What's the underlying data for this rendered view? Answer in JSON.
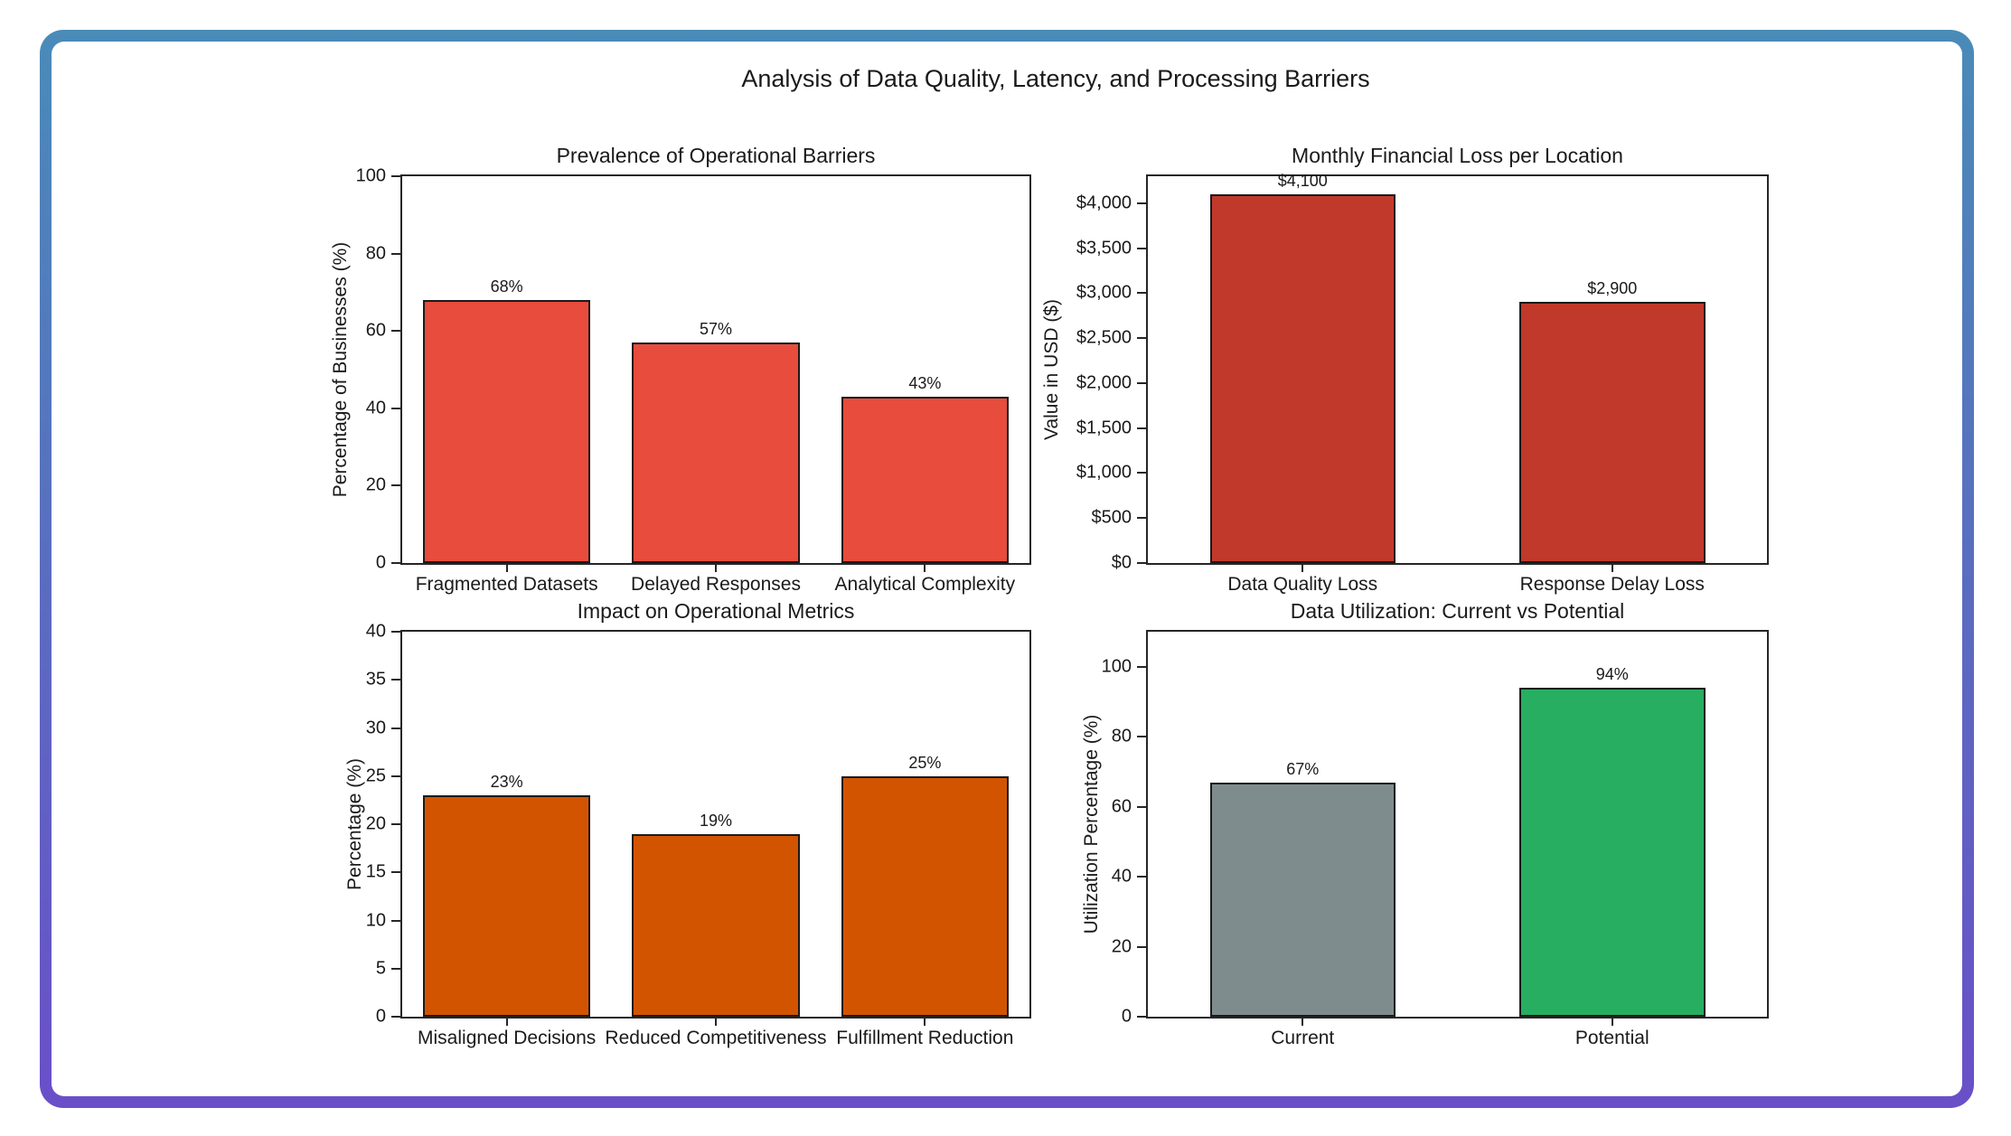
{
  "figure": {
    "title": "Analysis of Data Quality, Latency, and Processing Barriers",
    "background": "#ffffff",
    "border_gradient_top": "#4a8bb8",
    "border_gradient_bottom": "#6a4fc8"
  },
  "chart_data": [
    {
      "id": "prevalence-of-operational-barriers",
      "type": "bar",
      "title": "Prevalence of Operational Barriers",
      "xlabel": "",
      "ylabel": "Percentage of Businesses (%)",
      "categories": [
        "Fragmented Datasets",
        "Delayed Responses",
        "Analytical Complexity"
      ],
      "values": [
        68,
        57,
        43
      ],
      "value_labels": [
        "68%",
        "57%",
        "43%"
      ],
      "bar_color": "#e74c3c",
      "edge_color": "#1a1a1a",
      "ylim": [
        0,
        100
      ],
      "yticks": [
        0,
        20,
        40,
        60,
        80,
        100
      ],
      "ytick_labels": [
        "0",
        "20",
        "40",
        "60",
        "80",
        "100"
      ],
      "bar_width_ratio": 0.8,
      "grid": false,
      "legend": null
    },
    {
      "id": "monthly-financial-loss-per-location",
      "type": "bar",
      "title": "Monthly Financial Loss per Location",
      "xlabel": "",
      "ylabel": "Value in USD ($)",
      "categories": [
        "Data Quality Loss",
        "Response Delay Loss"
      ],
      "values": [
        4100,
        2900
      ],
      "value_labels": [
        "$4,100",
        "$2,900"
      ],
      "bar_color": "#c0392b",
      "edge_color": "#1a1a1a",
      "ylim": [
        0,
        4300
      ],
      "yticks": [
        0,
        500,
        1000,
        1500,
        2000,
        2500,
        3000,
        3500,
        4000
      ],
      "ytick_labels": [
        "$0",
        "$500",
        "$1,000",
        "$1,500",
        "$2,000",
        "$2,500",
        "$3,000",
        "$3,500",
        "$4,000"
      ],
      "bar_width_ratio": 0.6,
      "grid": false,
      "legend": null
    },
    {
      "id": "impact-on-operational-metrics",
      "type": "bar",
      "title": "Impact on Operational Metrics",
      "xlabel": "",
      "ylabel": "Percentage (%)",
      "categories": [
        "Misaligned Decisions",
        "Reduced Competitiveness",
        "Fulfillment Reduction"
      ],
      "values": [
        23,
        19,
        25
      ],
      "value_labels": [
        "23%",
        "19%",
        "25%"
      ],
      "bar_color": "#d35400",
      "edge_color": "#1a1a1a",
      "ylim": [
        0,
        40
      ],
      "yticks": [
        0,
        5,
        10,
        15,
        20,
        25,
        30,
        35,
        40
      ],
      "ytick_labels": [
        "0",
        "5",
        "10",
        "15",
        "20",
        "25",
        "30",
        "35",
        "40"
      ],
      "bar_width_ratio": 0.8,
      "grid": false,
      "legend": null
    },
    {
      "id": "data-utilization-current-vs-potential",
      "type": "bar",
      "title": "Data Utilization: Current vs Potential",
      "xlabel": "",
      "ylabel": "Utilization Percentage (%)",
      "categories": [
        "Current",
        "Potential"
      ],
      "values": [
        67,
        94
      ],
      "value_labels": [
        "67%",
        "94%"
      ],
      "bar_colors": [
        "#7f8c8d",
        "#27ae60"
      ],
      "edge_color": "#1a1a1a",
      "ylim": [
        0,
        110
      ],
      "yticks": [
        0,
        20,
        40,
        60,
        80,
        100
      ],
      "ytick_labels": [
        "0",
        "20",
        "40",
        "60",
        "80",
        "100"
      ],
      "bar_width_ratio": 0.6,
      "grid": false,
      "legend": null
    }
  ]
}
